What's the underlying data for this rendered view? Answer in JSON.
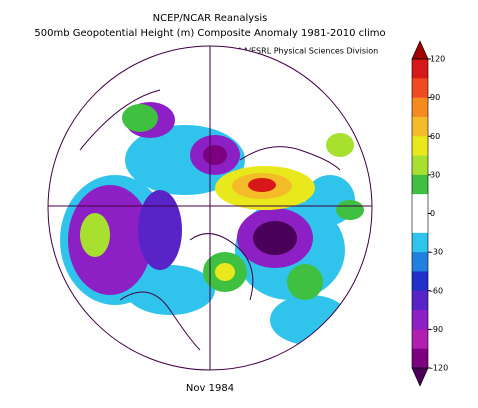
{
  "header": {
    "title": "NCEP/NCAR Reanalysis",
    "subtitle": "500mb Geopotential Height (m) Composite Anomaly 1981-2010 climo",
    "credit": "NOAA/ESRL Physical Sciences Division"
  },
  "footer": {
    "date": "Nov 1984"
  },
  "colorbar": {
    "ticks": [
      120,
      90,
      60,
      30,
      0,
      -30,
      -60,
      -90,
      -120
    ],
    "over_color": "#a00000",
    "under_color": "#4a0058",
    "colors": [
      "#d81818",
      "#f04a20",
      "#f48a20",
      "#f4bc28",
      "#e8e81c",
      "#a8e030",
      "#40c040",
      "#ffffff",
      "#ffffff",
      "#30c4ec",
      "#2080e0",
      "#2030c8",
      "#5824c8",
      "#8c20c4",
      "#b020b0",
      "#7c0080"
    ]
  }
}
